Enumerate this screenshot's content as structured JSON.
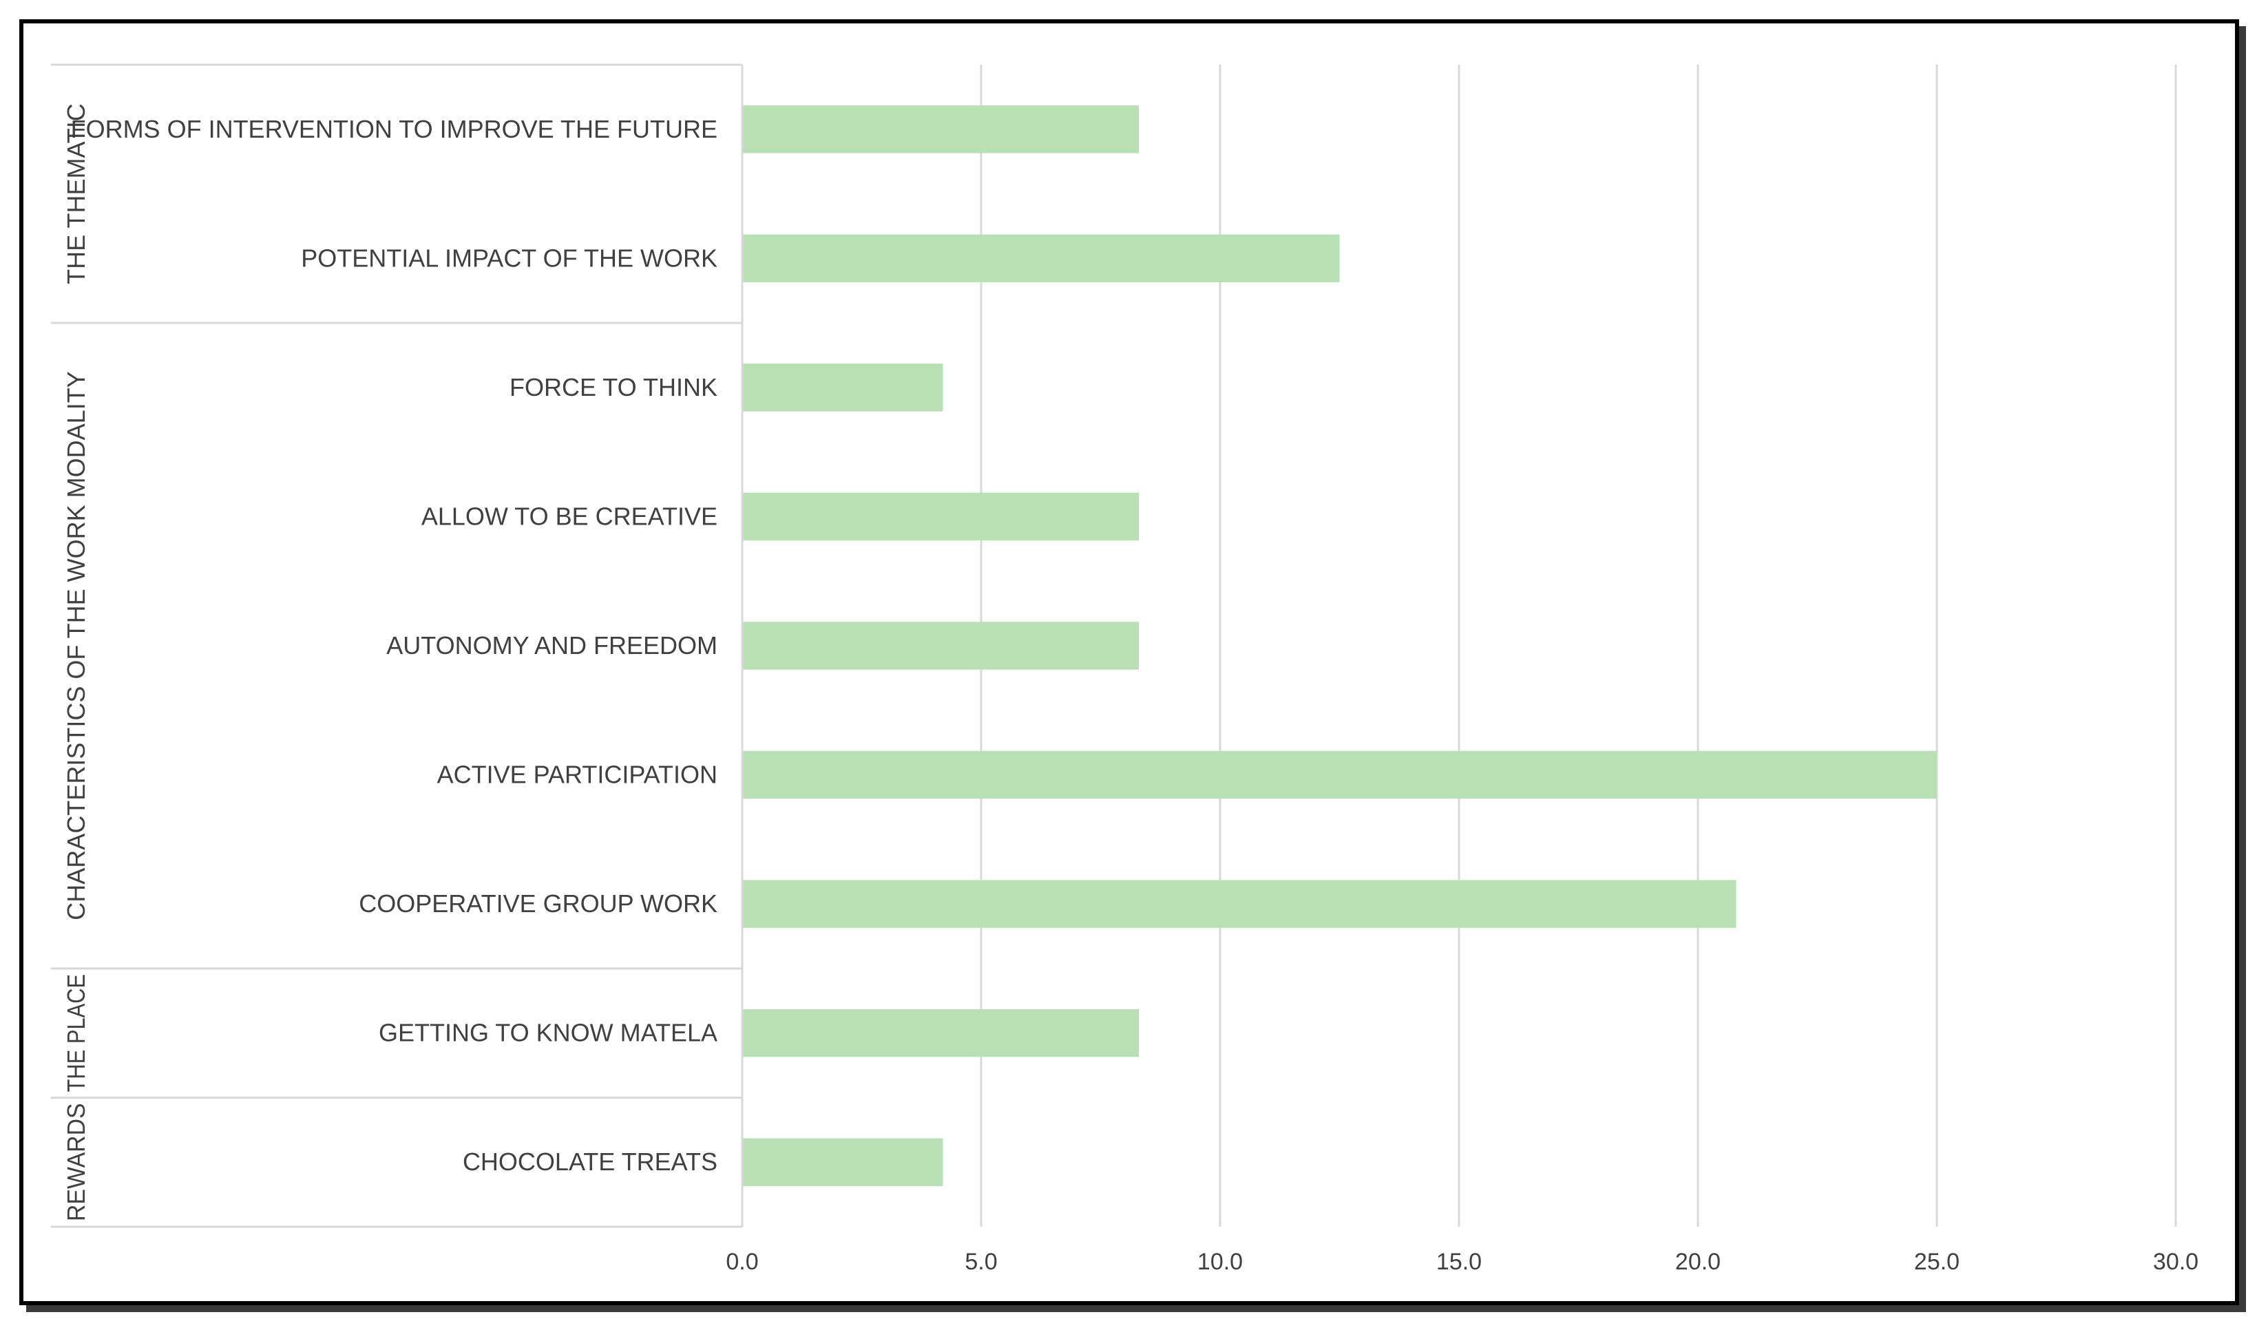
{
  "chart_data": {
    "type": "bar",
    "orientation": "horizontal",
    "title": "",
    "xlabel": "",
    "ylabel": "",
    "xlim": [
      0,
      30
    ],
    "x_ticks": [
      "0.0",
      "5.0",
      "10.0",
      "15.0",
      "20.0",
      "25.0",
      "30.0"
    ],
    "x_tick_values": [
      0,
      5,
      10,
      15,
      20,
      25,
      30
    ],
    "grid": "vertical",
    "legend": "none",
    "bar_color": "#b9e0b5",
    "categories": [
      "FORMS OF INTERVENTION TO IMPROVE THE FUTURE",
      "POTENTIAL IMPACT OF THE WORK",
      "FORCE TO THINK",
      "ALLOW TO BE CREATIVE",
      "AUTONOMY AND FREEDOM",
      "ACTIVE PARTICIPATION",
      "COOPERATIVE GROUP WORK",
      "GETTING TO KNOW MATELA",
      "CHOCOLATE TREATS"
    ],
    "values": [
      8.3,
      12.5,
      4.2,
      8.3,
      8.3,
      25.0,
      20.8,
      8.3,
      4.2
    ],
    "groups": [
      {
        "name": "THE THEMATIC",
        "first": 0,
        "last": 1
      },
      {
        "name": "CHARACTERISTICS OF THE WORK MODALITY",
        "first": 2,
        "last": 6
      },
      {
        "name": "THE PLACE",
        "first": 7,
        "last": 7
      },
      {
        "name": "REWARDS",
        "first": 8,
        "last": 8
      }
    ]
  }
}
